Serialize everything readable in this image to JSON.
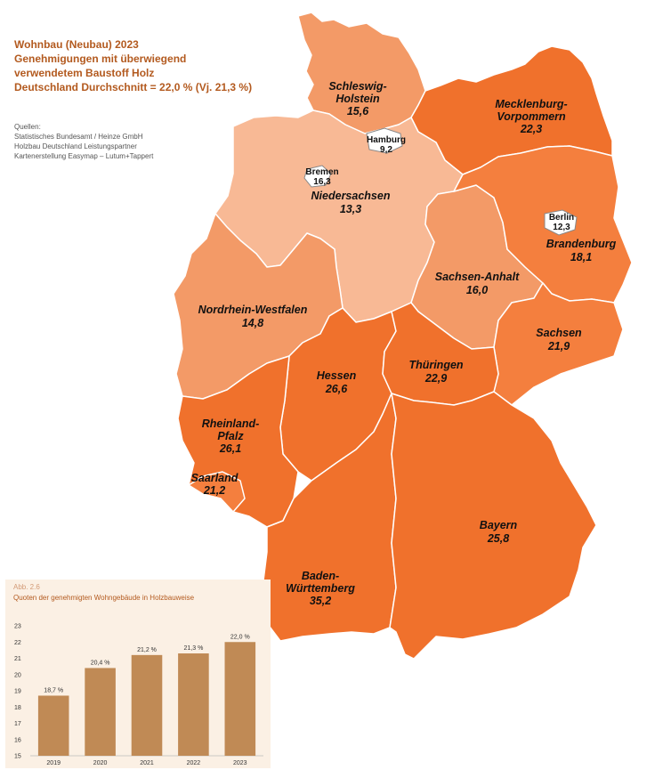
{
  "title": {
    "line1": "Wohnbau (Neubau) 2023",
    "line2": "Genehmigungen mit überwiegend",
    "line3": "verwendetem Baustoff Holz",
    "line4": "Deutschland Durchschnitt = 22,0 % (Vj. 21,3 %)"
  },
  "sources": {
    "heading": "Quellen:",
    "line1": "Statistisches Bundesamt / Heinze GmbH",
    "line2": "Holzbau Deutschland Leistungspartner",
    "line3": "Kartenerstellung Easymap – Lutum+Tappert"
  },
  "colors": {
    "light": "#f8b995",
    "medium": "#f39a67",
    "strong": "#f0712c",
    "orange": "#f47f3e",
    "bar": "#c08a55"
  },
  "states": {
    "schleswig_holstein": {
      "name1": "Schleswig-",
      "name2": "Holstein",
      "value": "15,6"
    },
    "hamburg": {
      "name": "Hamburg",
      "value": "9,2"
    },
    "mecklenburg": {
      "name1": "Mecklenburg-",
      "name2": "Vorpommern",
      "value": "22,3"
    },
    "bremen": {
      "name": "Bremen",
      "value": "16,3"
    },
    "niedersachsen": {
      "name": "Niedersachsen",
      "value": "13,3"
    },
    "berlin": {
      "name": "Berlin",
      "value": "12,3"
    },
    "brandenburg": {
      "name": "Brandenburg",
      "value": "18,1"
    },
    "sachsen_anhalt": {
      "name": "Sachsen-Anhalt",
      "value": "16,0"
    },
    "nrw": {
      "name": "Nordrhein-Westfalen",
      "value": "14,8"
    },
    "sachsen": {
      "name": "Sachsen",
      "value": "21,9"
    },
    "hessen": {
      "name": "Hessen",
      "value": "26,6"
    },
    "thueringen": {
      "name": "Thüringen",
      "value": "22,9"
    },
    "rheinland_pfalz": {
      "name1": "Rheinland-",
      "name2": "Pfalz",
      "value": "26,1"
    },
    "saarland": {
      "name": "Saarland",
      "value": "21,2"
    },
    "bayern": {
      "name": "Bayern",
      "value": "25,8"
    },
    "bw": {
      "name1": "Baden-",
      "name2": "Württemberg",
      "value": "35,2"
    }
  },
  "inset": {
    "figure": "Abb. 2.6",
    "title": "Quoten der genehmigten Wohngebäude  in Holzbauweise"
  },
  "chart_data": {
    "type": "bar",
    "categories": [
      "2019",
      "2020",
      "2021",
      "2022",
      "2023"
    ],
    "values": [
      18.7,
      20.4,
      21.2,
      21.3,
      22.0
    ],
    "value_labels": [
      "18,7 %",
      "20,4 %",
      "21,2 %",
      "21,3 %",
      "22,0 %"
    ],
    "yticks": [
      "15",
      "16",
      "17",
      "18",
      "19",
      "20",
      "21",
      "22",
      "23"
    ],
    "ylim": [
      15,
      23
    ],
    "grid": false,
    "legend": "none"
  }
}
